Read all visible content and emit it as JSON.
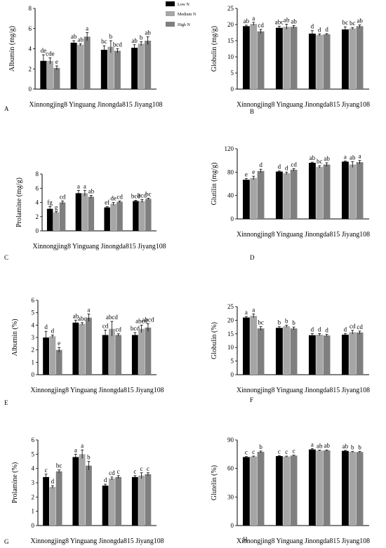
{
  "figure": {
    "legend": [
      {
        "label": "Low N",
        "color": "#000000"
      },
      {
        "label": "Medium N",
        "color": "#a6a6a6"
      },
      {
        "label": "High N",
        "color": "#7f7f7f"
      }
    ],
    "panel_letters": [
      "A",
      "B",
      "C",
      "D",
      "E",
      "F",
      "G",
      "H"
    ]
  },
  "chart_data": [
    {
      "type": "bar",
      "panel": "A",
      "ylabel": "Albumin (mg/g)",
      "ylim": [
        0,
        8
      ],
      "yticks": [
        0,
        2,
        4,
        6,
        8
      ],
      "categories": [
        "Xinnongjing8",
        "Yinguang",
        "Jinongda815",
        "Jiyang108"
      ],
      "series": [
        {
          "name": "Low N",
          "values": [
            2.8,
            4.6,
            3.9,
            4.1
          ],
          "errors": [
            0.6,
            0.2,
            0.4,
            0.3
          ],
          "labels": [
            "de",
            "ab",
            "bc",
            "ab"
          ]
        },
        {
          "name": "Medium N",
          "values": [
            2.8,
            4.4,
            4.2,
            4.5
          ],
          "errors": [
            0.3,
            0.1,
            0.6,
            0.2
          ],
          "labels": [
            "cde",
            "ab",
            "b",
            "b"
          ]
        },
        {
          "name": "High N",
          "values": [
            2.1,
            5.2,
            3.8,
            4.8
          ],
          "errors": [
            0.2,
            0.4,
            0.2,
            0.4
          ],
          "labels": [
            "e",
            "a",
            "bcd",
            "ab"
          ]
        }
      ],
      "legend": "top-right",
      "grid": false
    },
    {
      "type": "bar",
      "panel": "B",
      "ylabel": "Globulin (mg/g)",
      "ylim": [
        0,
        25
      ],
      "yticks": [
        0,
        5,
        10,
        15,
        20,
        25
      ],
      "categories": [
        "Xinnongjing8",
        "Yinguang",
        "Jinongda815",
        "Jiyang108"
      ],
      "series": [
        {
          "name": "Low N",
          "values": [
            19.5,
            19.0,
            17.2,
            18.5
          ],
          "errors": [
            0.3,
            0.5,
            0.9,
            0.8
          ],
          "labels": [
            "ab",
            "abc",
            "d",
            "bc"
          ]
        },
        {
          "name": "Medium N",
          "values": [
            20.2,
            19.3,
            16.8,
            18.8
          ],
          "errors": [
            0.5,
            0.8,
            0.3,
            0.3
          ],
          "labels": [
            "a",
            "ab",
            "d",
            "bc"
          ]
        },
        {
          "name": "High N",
          "values": [
            17.9,
            19.3,
            17.0,
            19.5
          ],
          "errors": [
            0.6,
            0.4,
            0.2,
            0.4
          ],
          "labels": [
            "cd",
            "ab",
            "d",
            "ab"
          ]
        }
      ],
      "grid": false
    },
    {
      "type": "bar",
      "panel": "C",
      "ylabel": "Prolamine (mg/g)",
      "ylim": [
        0,
        8
      ],
      "yticks": [
        0,
        2,
        4,
        6,
        8
      ],
      "categories": [
        "Xinnongjing8",
        "Yinguang",
        "Jinongda815",
        "Jiyang108"
      ],
      "series": [
        {
          "name": "Low N",
          "values": [
            3.1,
            5.3,
            3.3,
            4.2
          ],
          "errors": [
            0.3,
            0.4,
            0.1,
            0.1
          ],
          "labels": [
            "fg",
            "a",
            "ef",
            "bcd"
          ]
        },
        {
          "name": "Medium N",
          "values": [
            2.6,
            5.3,
            3.8,
            4.2
          ],
          "errors": [
            0.1,
            0.4,
            0.2,
            0.2
          ],
          "labels": [
            "g",
            "a",
            "de",
            "bcd"
          ]
        },
        {
          "name": "High N",
          "values": [
            4.0,
            4.8,
            4.1,
            4.5
          ],
          "errors": [
            0.2,
            0.2,
            0.1,
            0.1
          ],
          "labels": [
            "cd",
            "ab",
            "cd",
            "bc"
          ]
        }
      ],
      "grid": false
    },
    {
      "type": "bar",
      "panel": "D",
      "ylabel": "Glutilin (mg/g)",
      "ylim": [
        0,
        120
      ],
      "yticks": [
        0,
        40,
        80,
        120
      ],
      "categories": [
        "Xinnongjing8",
        "Yinguang",
        "Jinongda815",
        "Jiyang108"
      ],
      "series": [
        {
          "name": "Low N",
          "values": [
            67,
            81,
            96,
            98
          ],
          "errors": [
            2,
            1,
            1,
            1
          ],
          "labels": [
            "e",
            "d",
            "ab",
            "a"
          ]
        },
        {
          "name": "Medium N",
          "values": [
            70,
            78,
            89,
            93
          ],
          "errors": [
            3,
            2,
            2,
            5
          ],
          "labels": [
            "e",
            "d",
            "bc",
            "ab"
          ]
        },
        {
          "name": "High N",
          "values": [
            82,
            84,
            93,
            97
          ],
          "errors": [
            3,
            2,
            3,
            3
          ],
          "labels": [
            "d",
            "cd",
            "ab",
            "a"
          ]
        }
      ],
      "grid": false
    },
    {
      "type": "bar",
      "panel": "E",
      "ylabel": "Albumin (%)",
      "ylim": [
        0,
        6
      ],
      "yticks": [
        0,
        1,
        2,
        3,
        4,
        5,
        6
      ],
      "categories": [
        "Xinnongjing8",
        "Yinguang",
        "Jinongda815",
        "Jiyang108"
      ],
      "series": [
        {
          "name": "Low N",
          "values": [
            3.0,
            4.2,
            3.2,
            3.2
          ],
          "errors": [
            0.5,
            0.2,
            0.4,
            0.2
          ],
          "labels": [
            "d",
            "ab",
            "cd",
            "bcd"
          ]
        },
        {
          "name": "Medium N",
          "values": [
            3.1,
            4.1,
            3.7,
            3.7
          ],
          "errors": [
            0.1,
            0.1,
            0.6,
            0.3
          ],
          "labels": [
            "d",
            "abc",
            "abcd",
            "abcd"
          ]
        },
        {
          "name": "High N",
          "values": [
            2.0,
            4.6,
            3.2,
            3.8
          ],
          "errors": [
            0.2,
            0.3,
            0.1,
            0.3
          ],
          "labels": [
            "e",
            "a",
            "cd",
            "abcd"
          ]
        }
      ],
      "grid": false
    },
    {
      "type": "bar",
      "panel": "F",
      "ylabel": "Globulin (%)",
      "ylim": [
        0,
        25
      ],
      "yticks": [
        0,
        5,
        10,
        15,
        20,
        25
      ],
      "categories": [
        "Xinnongjing8",
        "Yinguang",
        "Jinongda815",
        "Jiyang108"
      ],
      "series": [
        {
          "name": "Low N",
          "values": [
            21.0,
            17.2,
            14.5,
            14.7
          ],
          "errors": [
            0.4,
            0.4,
            0.6,
            0.4
          ],
          "labels": [
            "a",
            "b",
            "d",
            "d"
          ]
        },
        {
          "name": "Medium N",
          "values": [
            21.6,
            17.8,
            14.7,
            15.6
          ],
          "errors": [
            0.7,
            0.4,
            0.4,
            0.7
          ],
          "labels": [
            "a",
            "b",
            "d",
            "cd"
          ]
        },
        {
          "name": "High N",
          "values": [
            17.0,
            17.0,
            14.4,
            15.5
          ],
          "errors": [
            0.7,
            0.5,
            0.4,
            0.5
          ],
          "labels": [
            "bc",
            "b",
            "d",
            "cd"
          ]
        }
      ],
      "grid": false
    },
    {
      "type": "bar",
      "panel": "G",
      "ylabel": "Prolamine (%)",
      "ylim": [
        0,
        6
      ],
      "yticks": [
        0,
        1,
        2,
        3,
        4,
        5,
        6
      ],
      "categories": [
        "Xinnongjing8",
        "Yinguang",
        "Jinongda815",
        "Jiyang108"
      ],
      "series": [
        {
          "name": "Low N",
          "values": [
            3.4,
            4.8,
            2.8,
            3.4
          ],
          "errors": [
            0.2,
            0.2,
            0.1,
            0.1
          ],
          "labels": [
            "c",
            "a",
            "d",
            "c"
          ]
        },
        {
          "name": "Medium N",
          "values": [
            2.7,
            5.0,
            3.3,
            3.5
          ],
          "errors": [
            0.1,
            0.3,
            0.1,
            0.2
          ],
          "labels": [
            "d",
            "a",
            "cd",
            "c"
          ]
        },
        {
          "name": "High N",
          "values": [
            3.8,
            4.2,
            3.4,
            3.6
          ],
          "errors": [
            0.1,
            0.3,
            0.1,
            0.1
          ],
          "labels": [
            "bc",
            "b",
            "c",
            "c"
          ]
        }
      ],
      "grid": false
    },
    {
      "type": "bar",
      "panel": "H",
      "ylabel": "Glutelin (%)",
      "ylim": [
        0,
        90
      ],
      "yticks": [
        0,
        30,
        60,
        90
      ],
      "categories": [
        "Xinnongjing8",
        "Yinguang",
        "Jinongda815",
        "Jiyang108"
      ],
      "series": [
        {
          "name": "Low N",
          "values": [
            72,
            73,
            80,
            78.5
          ],
          "errors": [
            0.5,
            0.5,
            0.8,
            0.5
          ],
          "labels": [
            "c",
            "c",
            "a",
            "ab"
          ]
        },
        {
          "name": "Medium N",
          "values": [
            72.5,
            72.5,
            78.8,
            77.5
          ],
          "errors": [
            0.5,
            0.5,
            0.5,
            0.5
          ],
          "labels": [
            "c",
            "c",
            "ab",
            "b"
          ]
        },
        {
          "name": "High N",
          "values": [
            77.5,
            73.5,
            79.0,
            77.3
          ],
          "errors": [
            0.8,
            0.5,
            0.5,
            0.5
          ],
          "labels": [
            "b",
            "c",
            "ab",
            "b"
          ]
        }
      ],
      "grid": false
    }
  ]
}
